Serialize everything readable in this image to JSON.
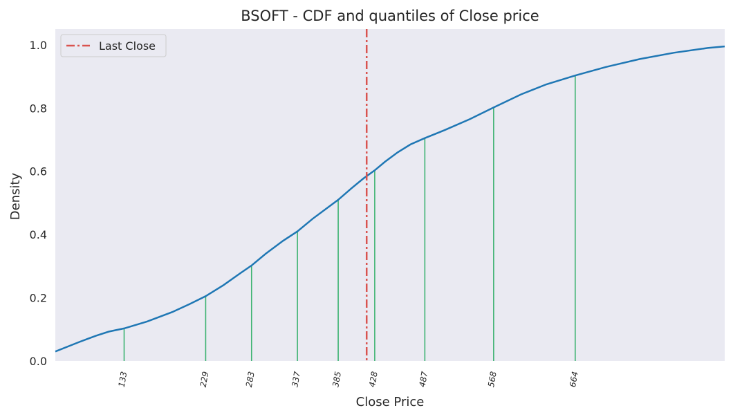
{
  "chart_data": {
    "type": "line",
    "title": "BSOFT - CDF and quantiles of Close price",
    "xlabel": "Close Price",
    "ylabel": "Density",
    "xlim": [
      52,
      840
    ],
    "ylim": [
      0,
      1.05
    ],
    "yticks": [
      0.0,
      0.2,
      0.4,
      0.6,
      0.8,
      1.0
    ],
    "ytick_labels": [
      "0.0",
      "0.2",
      "0.4",
      "0.6",
      "0.8",
      "1.0"
    ],
    "grid": false,
    "legend": {
      "position": "top-left",
      "entries": [
        "Last Close"
      ]
    },
    "series": [
      {
        "name": "",
        "color": "#1f77b4",
        "x": [
          52,
          80,
          100,
          115,
          133,
          160,
          190,
          210,
          229,
          250,
          270,
          283,
          300,
          320,
          337,
          355,
          370,
          385,
          400,
          415,
          428,
          440,
          455,
          470,
          487,
          510,
          540,
          568,
          600,
          630,
          664,
          700,
          740,
          780,
          820,
          840
        ],
        "y": [
          0.03,
          0.06,
          0.08,
          0.093,
          0.103,
          0.125,
          0.155,
          0.18,
          0.205,
          0.24,
          0.278,
          0.302,
          0.34,
          0.38,
          0.41,
          0.45,
          0.48,
          0.51,
          0.545,
          0.578,
          0.603,
          0.63,
          0.66,
          0.685,
          0.705,
          0.73,
          0.765,
          0.802,
          0.843,
          0.875,
          0.903,
          0.93,
          0.955,
          0.975,
          0.99,
          0.995
        ]
      }
    ],
    "quantiles": [
      {
        "label": "133",
        "x": 133,
        "y": 0.103
      },
      {
        "label": "229",
        "x": 229,
        "y": 0.205
      },
      {
        "label": "283",
        "x": 283,
        "y": 0.302
      },
      {
        "label": "337",
        "x": 337,
        "y": 0.41
      },
      {
        "label": "385",
        "x": 385,
        "y": 0.51
      },
      {
        "label": "428",
        "x": 428,
        "y": 0.603
      },
      {
        "label": "487",
        "x": 487,
        "y": 0.705
      },
      {
        "label": "568",
        "x": 568,
        "y": 0.802
      },
      {
        "label": "664",
        "x": 664,
        "y": 0.903
      }
    ],
    "quantile_color": "#3cb371",
    "last_close": {
      "label": "Last Close",
      "x": 418.5,
      "color": "#d9534f"
    }
  }
}
